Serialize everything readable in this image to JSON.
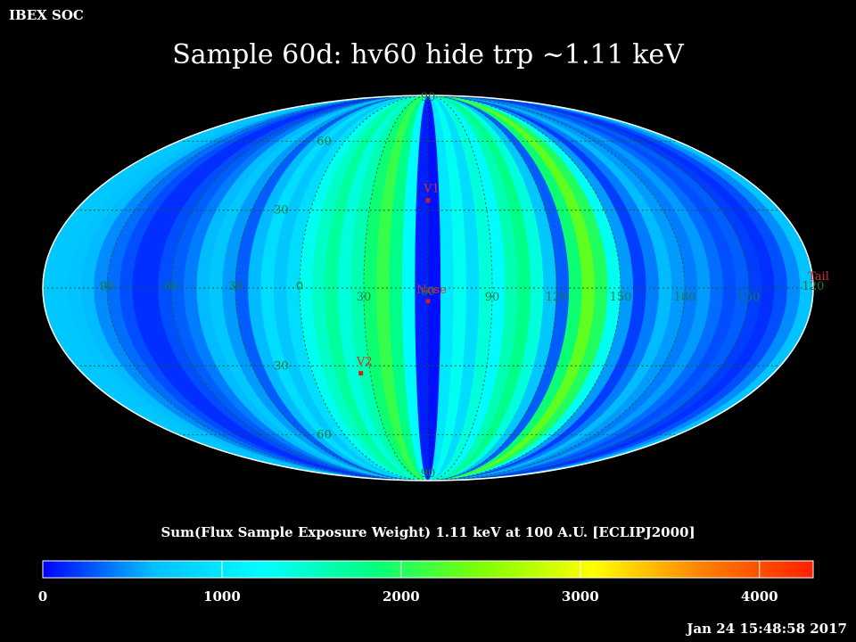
{
  "header": {
    "corner_label": "IBEX SOC",
    "title": "Sample 60d: hv60 hide trp ~1.11 keV"
  },
  "footer": {
    "timestamp": "Jan 24 15:48:58 2017"
  },
  "chart_data": {
    "type": "heatmap",
    "projection": "mollweide",
    "title": "Sample 60d: hv60 hide trp ~1.11 keV",
    "colorbar_label": "Sum(Flux Sample Exposure Weight)  1.11 keV at 100 A.U. [ECLIPJ2000]",
    "colorbar_range": [
      0,
      4300
    ],
    "colorbar_ticks": [
      0,
      1000,
      2000,
      3000,
      4000
    ],
    "colormap": [
      "#0000ff",
      "#00bfff",
      "#00ffff",
      "#00ff7f",
      "#7fff00",
      "#ffff00",
      "#ff8000",
      "#ff2000"
    ],
    "grid": true,
    "longitude_labels": [
      "60",
      "30",
      "0",
      "30",
      "60",
      "90",
      "120",
      "150",
      "180",
      "150",
      "120",
      "90"
    ],
    "longitude_label_positions": [
      -120,
      -90,
      -60,
      -30,
      0,
      30,
      60,
      90,
      120,
      150,
      180,
      210
    ],
    "latitude_labels": [
      "90",
      "60",
      "30",
      "30",
      "60",
      "90"
    ],
    "latitude_label_values": [
      90,
      60,
      30,
      -30,
      -60,
      -90
    ],
    "markers": [
      {
        "label": "V1",
        "lon": 0,
        "lat": 34
      },
      {
        "label": "Nose",
        "lon": 0,
        "lat": -5
      },
      {
        "label": "V2",
        "lon": -35,
        "lat": -33
      },
      {
        "label": "Tail",
        "lon": 180,
        "lat": 0
      }
    ],
    "strips": [
      {
        "lon": -180,
        "value": 700
      },
      {
        "lon": -174,
        "value": 700
      },
      {
        "lon": -168,
        "value": 650
      },
      {
        "lon": -162,
        "value": 600
      },
      {
        "lon": -156,
        "value": 450
      },
      {
        "lon": -150,
        "value": 350
      },
      {
        "lon": -144,
        "value": 250
      },
      {
        "lon": -138,
        "value": 150
      },
      {
        "lon": -132,
        "value": 150
      },
      {
        "lon": -126,
        "value": 250
      },
      {
        "lon": -120,
        "value": 300
      },
      {
        "lon": -114,
        "value": 400
      },
      {
        "lon": -108,
        "value": 600
      },
      {
        "lon": -102,
        "value": 700
      },
      {
        "lon": -96,
        "value": 500
      },
      {
        "lon": -90,
        "value": 300
      },
      {
        "lon": -84,
        "value": 600
      },
      {
        "lon": -78,
        "value": 900
      },
      {
        "lon": -72,
        "value": 700
      },
      {
        "lon": -66,
        "value": 900
      },
      {
        "lon": -60,
        "value": 1300
      },
      {
        "lon": -54,
        "value": 1500
      },
      {
        "lon": -48,
        "value": 1700
      },
      {
        "lon": -42,
        "value": 1400
      },
      {
        "lon": -36,
        "value": 1600
      },
      {
        "lon": -30,
        "value": 1900
      },
      {
        "lon": -24,
        "value": 2100
      },
      {
        "lon": -18,
        "value": 1800
      },
      {
        "lon": -12,
        "value": 1200
      },
      {
        "lon": -6,
        "value": 100
      },
      {
        "lon": 0,
        "value": 50
      },
      {
        "lon": 6,
        "value": 1000
      },
      {
        "lon": 12,
        "value": 1300
      },
      {
        "lon": 18,
        "value": 900
      },
      {
        "lon": 24,
        "value": 1400
      },
      {
        "lon": 30,
        "value": 1200
      },
      {
        "lon": 36,
        "value": 1600
      },
      {
        "lon": 42,
        "value": 1800
      },
      {
        "lon": 48,
        "value": 1400
      },
      {
        "lon": 54,
        "value": 700
      },
      {
        "lon": 60,
        "value": 300
      },
      {
        "lon": 66,
        "value": 1900
      },
      {
        "lon": 72,
        "value": 2300
      },
      {
        "lon": 78,
        "value": 2000
      },
      {
        "lon": 84,
        "value": 1300
      },
      {
        "lon": 90,
        "value": 500
      },
      {
        "lon": 96,
        "value": 200
      },
      {
        "lon": 102,
        "value": 400
      },
      {
        "lon": 108,
        "value": 600
      },
      {
        "lon": 114,
        "value": 500
      },
      {
        "lon": 120,
        "value": 400
      },
      {
        "lon": 126,
        "value": 500
      },
      {
        "lon": 132,
        "value": 350
      },
      {
        "lon": 138,
        "value": 250
      },
      {
        "lon": 144,
        "value": 300
      },
      {
        "lon": 150,
        "value": 200
      },
      {
        "lon": 156,
        "value": 150
      },
      {
        "lon": 162,
        "value": 250
      },
      {
        "lon": 168,
        "value": 450
      },
      {
        "lon": 174,
        "value": 650
      }
    ]
  }
}
